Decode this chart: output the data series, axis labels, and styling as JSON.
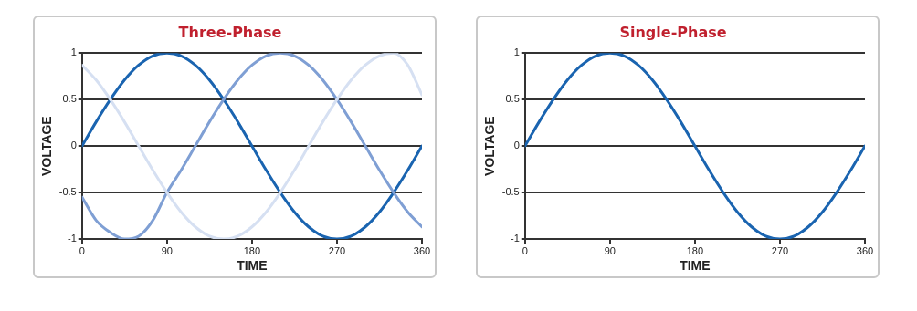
{
  "chart_data": [
    {
      "type": "line",
      "title": "Three-Phase",
      "xlabel": "TIME",
      "ylabel": "VOLTAGE",
      "x": [
        0,
        15,
        30,
        45,
        60,
        75,
        90,
        105,
        120,
        135,
        150,
        165,
        180,
        195,
        210,
        225,
        240,
        255,
        270,
        285,
        300,
        315,
        330,
        345,
        360
      ],
      "xlim": [
        0,
        360
      ],
      "xticks": [
        0,
        90,
        180,
        270,
        360
      ],
      "ylim": [
        -1,
        1
      ],
      "yticks": [
        -1,
        -0.5,
        0,
        0.5,
        1
      ],
      "grid": "y",
      "legend": false,
      "marker": "none",
      "line_style": "solid",
      "series": [
        {
          "color": "#d6e0f2",
          "values": [
            0.87,
            0.71,
            0.5,
            0.26,
            0,
            -0.26,
            -0.5,
            -0.71,
            -0.87,
            -0.97,
            -1,
            -0.97,
            -0.87,
            -0.71,
            -0.5,
            -0.26,
            0,
            0.26,
            0.5,
            0.71,
            0.87,
            0.97,
            1,
            0.87,
            0.55
          ]
        },
        {
          "color": "#7f9fd4",
          "values": [
            -0.55,
            -0.8,
            -0.93,
            -1,
            -0.97,
            -0.8,
            -0.5,
            -0.26,
            0,
            0.26,
            0.5,
            0.71,
            0.87,
            0.97,
            1,
            0.97,
            0.87,
            0.71,
            0.5,
            0.26,
            0,
            -0.26,
            -0.5,
            -0.71,
            -0.87
          ]
        },
        {
          "color": "#1a64b0",
          "values": [
            0,
            0.26,
            0.5,
            0.71,
            0.87,
            0.97,
            1,
            0.97,
            0.87,
            0.71,
            0.5,
            0.26,
            0,
            -0.26,
            -0.5,
            -0.71,
            -0.87,
            -0.97,
            -1,
            -0.97,
            -0.87,
            -0.71,
            -0.5,
            -0.26,
            0
          ]
        }
      ]
    },
    {
      "type": "line",
      "title": "Single-Phase",
      "xlabel": "TIME",
      "ylabel": "VOLTAGE",
      "x": [
        0,
        15,
        30,
        45,
        60,
        75,
        90,
        105,
        120,
        135,
        150,
        165,
        180,
        195,
        210,
        225,
        240,
        255,
        270,
        285,
        300,
        315,
        330,
        345,
        360
      ],
      "xlim": [
        0,
        360
      ],
      "xticks": [
        0,
        90,
        180,
        270,
        360
      ],
      "ylim": [
        -1,
        1
      ],
      "yticks": [
        -1,
        -0.5,
        0,
        0.5,
        1
      ],
      "grid": "y",
      "legend": false,
      "marker": "none",
      "line_style": "solid",
      "series": [
        {
          "color": "#1a64b0",
          "values": [
            0,
            0.26,
            0.5,
            0.71,
            0.87,
            0.97,
            1,
            0.97,
            0.87,
            0.71,
            0.5,
            0.26,
            0,
            -0.26,
            -0.5,
            -0.71,
            -0.87,
            -0.97,
            -1,
            -0.97,
            -0.87,
            -0.71,
            -0.5,
            -0.26,
            0
          ]
        }
      ]
    }
  ]
}
